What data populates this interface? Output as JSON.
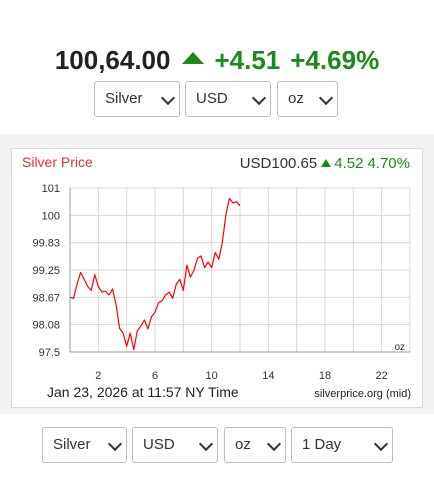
{
  "header": {
    "price": "100,64.00",
    "change": "+4.51",
    "percent": "+4.69%"
  },
  "top_selectors": {
    "metal": "Silver",
    "currency": "USD",
    "unit": "oz"
  },
  "chart_header": {
    "title": "Silver Price",
    "price": "USD100.65",
    "change": "4.52",
    "percent": "4.70%"
  },
  "chart_footer": {
    "timestamp": "Jan 23, 2026 at 11:57 NY Time",
    "source": "silverprice.org (mid)",
    "unit_label": "oz"
  },
  "bottom_selectors": {
    "metal": "Silver",
    "currency": "USD",
    "unit": "oz",
    "range": "1 Day"
  },
  "colors": {
    "up": "#1a8a1a",
    "title": "#e8322b",
    "line": "#ff0000",
    "grid": "#d8d8d8"
  },
  "chart_data": {
    "type": "line",
    "title": "Silver Price",
    "xlabel": "",
    "ylabel": "",
    "x_ticks": [
      2,
      6,
      10,
      14,
      18,
      22
    ],
    "y_ticks": [
      101,
      100,
      99.83,
      99.25,
      98.67,
      98.08,
      97.5
    ],
    "xlim": [
      0,
      24
    ],
    "ylim": [
      97.5,
      101
    ],
    "grid": true,
    "series": [
      {
        "x": [
          0.0,
          0.25,
          0.5,
          0.75,
          1.0,
          1.25,
          1.5,
          1.75,
          2.0,
          2.25,
          2.5,
          2.75,
          3.0,
          3.25,
          3.5,
          3.75,
          4.0,
          4.25,
          4.5,
          4.75,
          5.0,
          5.25,
          5.5,
          5.75,
          6.0,
          6.25,
          6.5,
          6.75,
          7.0,
          7.25,
          7.5,
          7.75,
          8.0,
          8.25,
          8.5,
          8.75,
          9.0,
          9.25,
          9.5,
          9.75,
          10.0,
          10.25,
          10.5,
          10.75,
          11.0,
          11.25,
          11.5,
          11.75,
          12.0
        ],
        "y": [
          98.67,
          98.65,
          98.95,
          99.2,
          99.05,
          98.9,
          98.82,
          99.15,
          98.9,
          98.78,
          98.8,
          98.72,
          98.85,
          98.52,
          98.0,
          97.9,
          97.62,
          97.9,
          97.55,
          97.95,
          98.05,
          98.18,
          97.99,
          98.25,
          98.35,
          98.55,
          98.6,
          98.72,
          98.78,
          98.65,
          98.95,
          99.05,
          98.82,
          99.35,
          99.1,
          99.25,
          99.5,
          99.55,
          99.3,
          99.42,
          99.3,
          99.62,
          99.48,
          99.83,
          100.0,
          100.62,
          100.45,
          100.5,
          100.35
        ]
      }
    ]
  }
}
